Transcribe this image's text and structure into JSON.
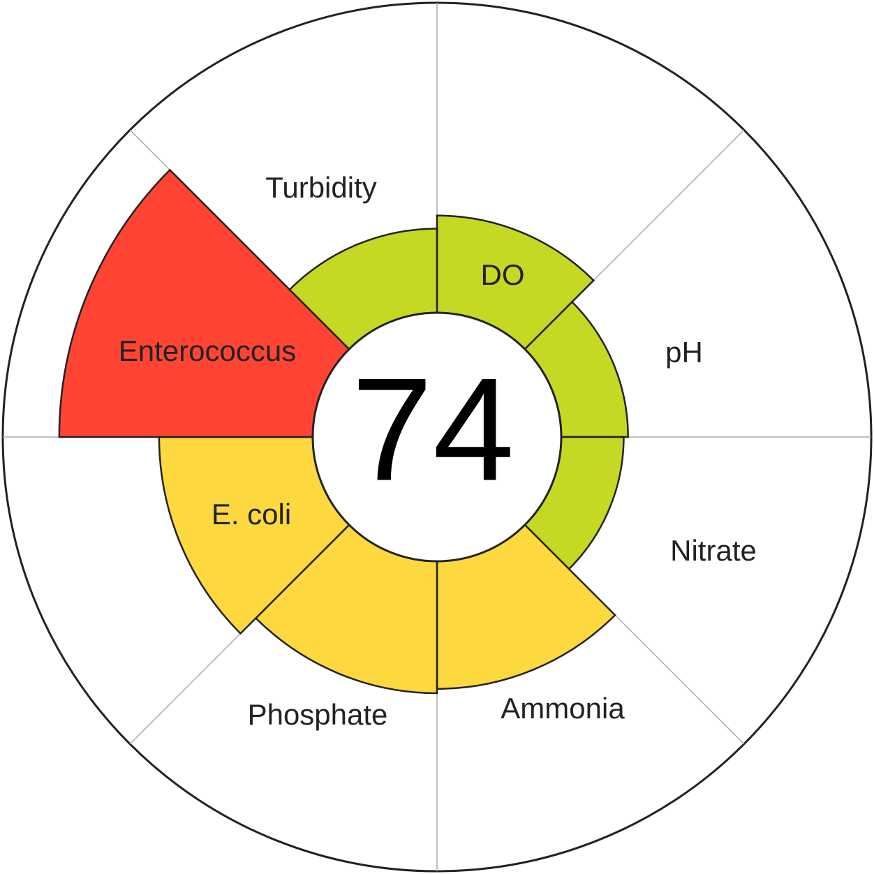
{
  "chart_data": {
    "type": "polar",
    "score": 74,
    "categories": [
      "DO",
      "pH",
      "Nitrate",
      "Ammonia",
      "Phosphate",
      "E. coli",
      "Enterococcus",
      "Turbidity"
    ],
    "values": [
      51,
      44,
      43,
      58,
      59,
      64,
      87,
      48
    ],
    "colors": [
      "#c5d824",
      "#c5d824",
      "#c5d824",
      "#fdd83f",
      "#fdd83f",
      "#fdd83f",
      "#ff4433",
      "#c5d824"
    ],
    "ylim": [
      0,
      100
    ]
  }
}
